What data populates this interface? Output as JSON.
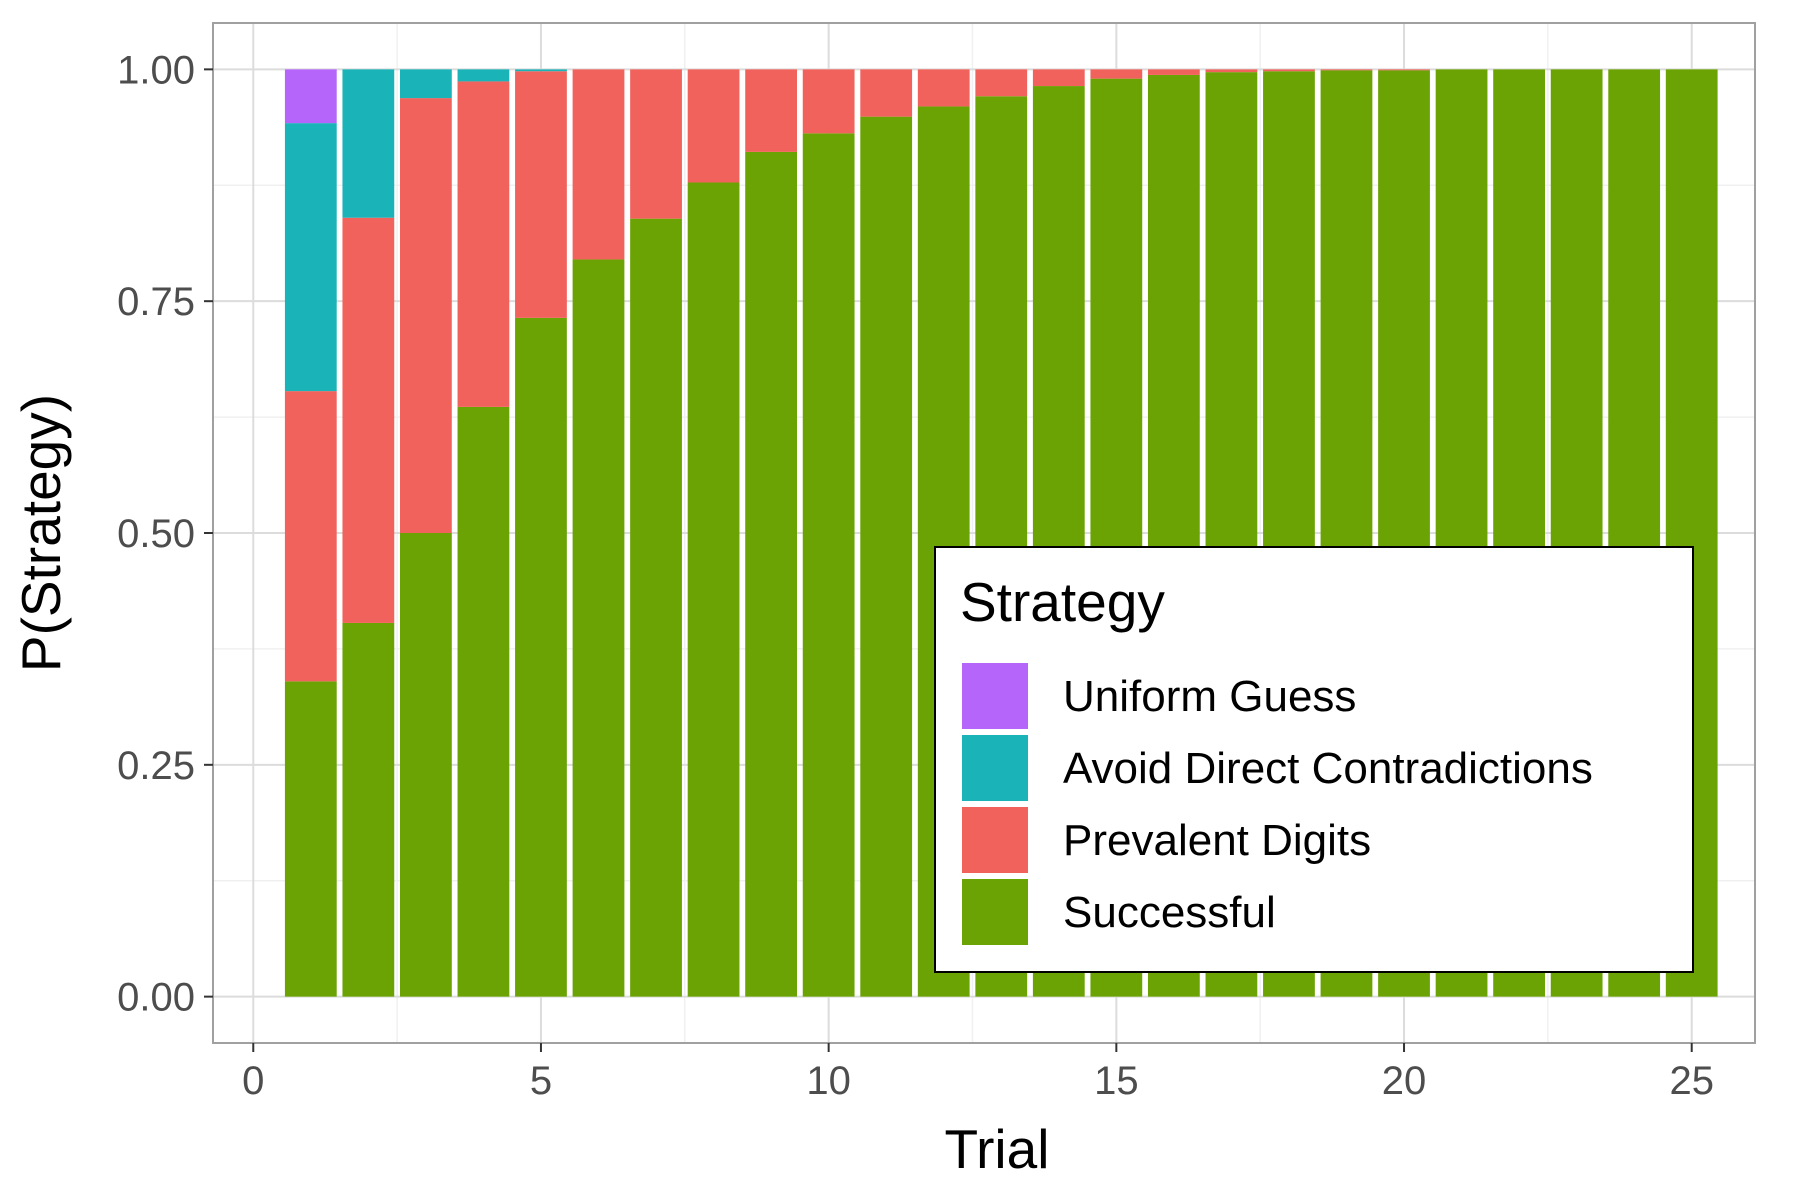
{
  "chart_data": {
    "type": "bar",
    "stacked": true,
    "xlabel": "Trial",
    "ylabel": "P(Strategy)",
    "xlim": [
      -0.7,
      26.1
    ],
    "ylim": [
      -0.05,
      1.05
    ],
    "x_ticks": [
      0,
      5,
      10,
      15,
      20,
      25
    ],
    "y_ticks": [
      0.0,
      0.25,
      0.5,
      0.75,
      1.0
    ],
    "x_tick_labels": [
      "0",
      "5",
      "10",
      "15",
      "20",
      "25"
    ],
    "y_tick_labels": [
      "0.00",
      "0.25",
      "0.50",
      "0.75",
      "1.00"
    ],
    "grid": true,
    "legend": {
      "title": "Strategy",
      "position": "bottom-right",
      "entries": [
        "Uniform Guess",
        "Avoid Direct Contradictions",
        "Prevalent Digits",
        "Successful"
      ]
    },
    "categories": [
      1,
      2,
      3,
      4,
      5,
      6,
      7,
      8,
      9,
      10,
      11,
      12,
      13,
      14,
      15,
      16,
      17,
      18,
      19,
      20,
      21,
      22,
      23,
      24,
      25
    ],
    "series": [
      {
        "name": "Successful",
        "color": "#6ba304",
        "values": [
          0.34,
          0.403,
          0.5,
          0.636,
          0.732,
          0.795,
          0.839,
          0.878,
          0.911,
          0.931,
          0.949,
          0.96,
          0.971,
          0.982,
          0.99,
          0.994,
          0.997,
          0.998,
          0.999,
          0.999,
          1.0,
          1.0,
          1.0,
          1.0,
          1.0
        ]
      },
      {
        "name": "Prevalent Digits",
        "color": "#f2625c",
        "values": [
          0.313,
          0.437,
          0.469,
          0.351,
          0.266,
          0.205,
          0.161,
          0.122,
          0.089,
          0.069,
          0.051,
          0.04,
          0.029,
          0.018,
          0.01,
          0.006,
          0.003,
          0.002,
          0.001,
          0.001,
          0.0,
          0.0,
          0.0,
          0.0,
          0.0
        ]
      },
      {
        "name": "Avoid Direct Contradictions",
        "color": "#1ab3b8",
        "values": [
          0.289,
          0.16,
          0.031,
          0.013,
          0.002,
          0.0,
          0.0,
          0.0,
          0.0,
          0.0,
          0.0,
          0.0,
          0.0,
          0.0,
          0.0,
          0.0,
          0.0,
          0.0,
          0.0,
          0.0,
          0.0,
          0.0,
          0.0,
          0.0,
          0.0
        ]
      },
      {
        "name": "Uniform Guess",
        "color": "#b565fa",
        "values": [
          0.058,
          0.0,
          0.0,
          0.0,
          0.0,
          0.0,
          0.0,
          0.0,
          0.0,
          0.0,
          0.0,
          0.0,
          0.0,
          0.0,
          0.0,
          0.0,
          0.0,
          0.0,
          0.0,
          0.0,
          0.0,
          0.0,
          0.0,
          0.0,
          0.0
        ]
      }
    ]
  }
}
